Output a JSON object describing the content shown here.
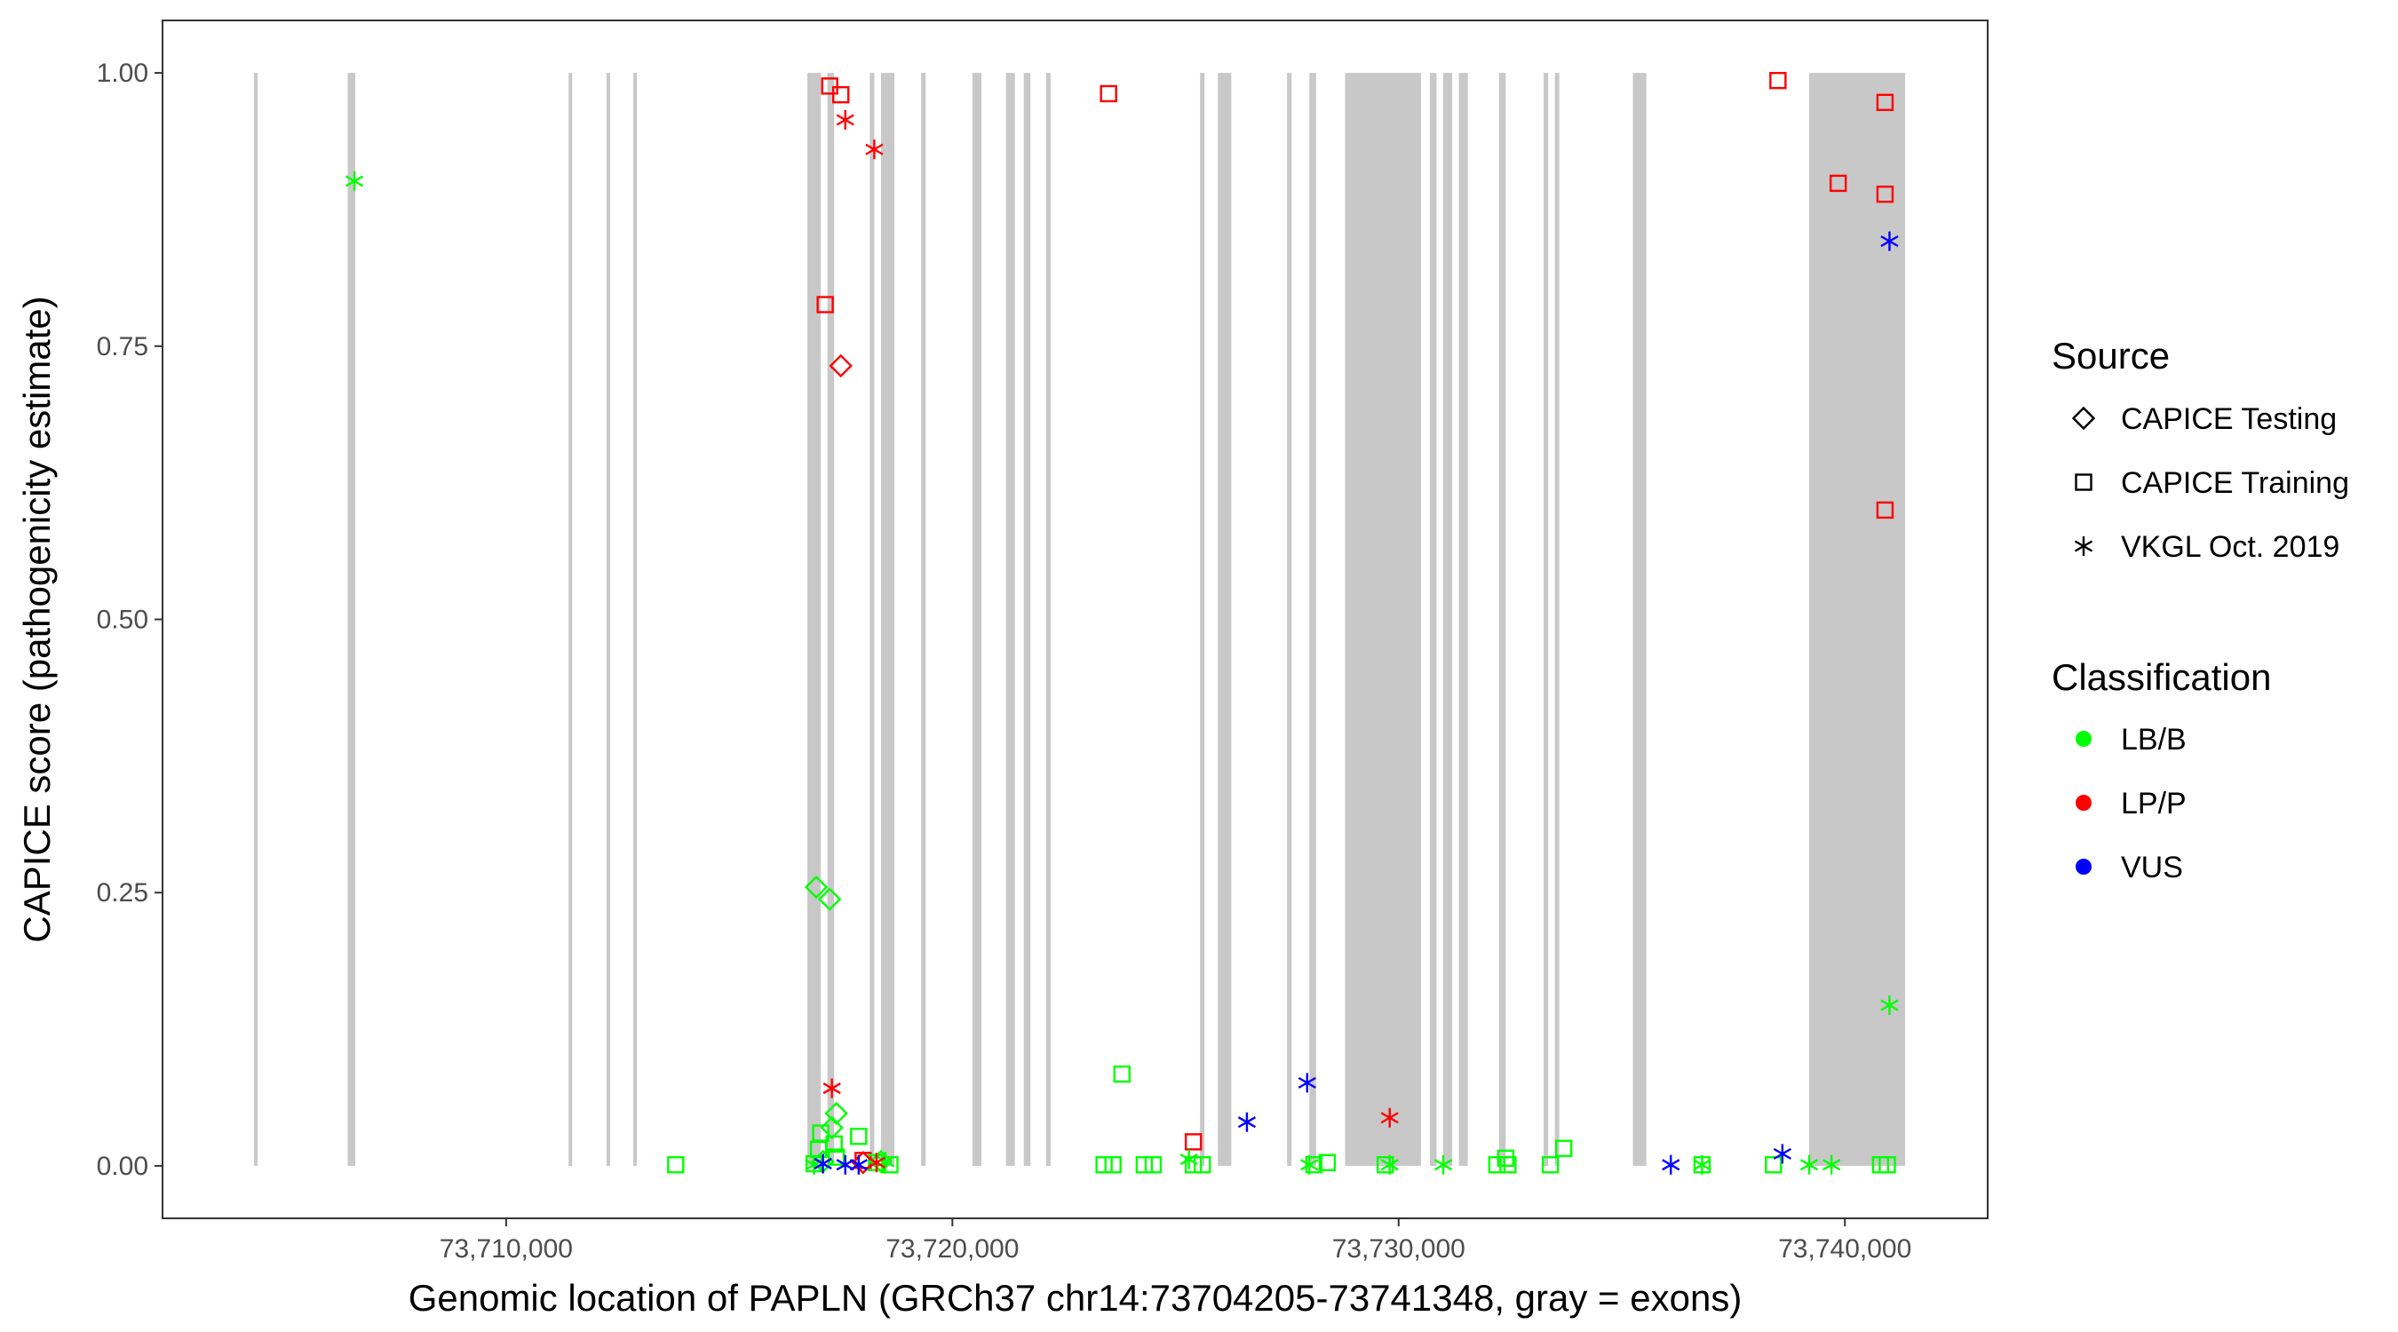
{
  "chart_data": {
    "type": "scatter",
    "xlabel": "Genomic location of PAPLN (GRCh37 chr14:73704205-73741348, gray = exons)",
    "ylabel": "CAPICE score (pathogenicity estimate)",
    "xlim": [
      73702300,
      73743200
    ],
    "ylim": [
      -0.048,
      1.048
    ],
    "x_ticks": [
      73710000,
      73720000,
      73730000,
      73740000
    ],
    "x_tick_labels": [
      "73,710,000",
      "73,720,000",
      "73,730,000",
      "73,740,000"
    ],
    "y_ticks": [
      0,
      0.25,
      0.5,
      0.75,
      1
    ],
    "y_tick_labels": [
      "0.00",
      "0.25",
      "0.50",
      "0.75",
      "1.00"
    ],
    "grid": false,
    "exon_color": "#c8c8c8",
    "exons": [
      [
        73704350,
        73704430
      ],
      [
        73706450,
        73706620
      ],
      [
        73711400,
        73711480
      ],
      [
        73712250,
        73712330
      ],
      [
        73712850,
        73712930
      ],
      [
        73716750,
        73717050
      ],
      [
        73717200,
        73717350
      ],
      [
        73718150,
        73718250
      ],
      [
        73718400,
        73718700
      ],
      [
        73719300,
        73719400
      ],
      [
        73720450,
        73720650
      ],
      [
        73721200,
        73721400
      ],
      [
        73721600,
        73721750
      ],
      [
        73722100,
        73722200
      ],
      [
        73725550,
        73725650
      ],
      [
        73725950,
        73726250
      ],
      [
        73727500,
        73727600
      ],
      [
        73728000,
        73728150
      ],
      [
        73728800,
        73730500
      ],
      [
        73730700,
        73730850
      ],
      [
        73731000,
        73731200
      ],
      [
        73731350,
        73731550
      ],
      [
        73732250,
        73732400
      ],
      [
        73733250,
        73733350
      ],
      [
        73733500,
        73733600
      ],
      [
        73735250,
        73735550
      ],
      [
        73739200,
        73741350
      ]
    ],
    "legends": [
      {
        "title": "Source",
        "entries": [
          {
            "label": "CAPICE Testing",
            "shape": "diamond"
          },
          {
            "label": "CAPICE Training",
            "shape": "square"
          },
          {
            "label": "VKGL Oct. 2019",
            "shape": "asterisk"
          }
        ]
      },
      {
        "title": "Classification",
        "entries": [
          {
            "label": "LB/B",
            "color": "#00ff00"
          },
          {
            "label": "LP/P",
            "color": "#ff0000"
          },
          {
            "label": "VUS",
            "color": "#0000ff"
          }
        ]
      }
    ],
    "legend_position": "right",
    "series": [
      {
        "source": "CAPICE Training",
        "classification": "LP/P",
        "points": [
          [
            73717250,
            0.988
          ],
          [
            73717500,
            0.98
          ],
          [
            73717150,
            0.788
          ],
          [
            73723500,
            0.981
          ],
          [
            73725400,
            0.022
          ],
          [
            73738500,
            0.993
          ],
          [
            73739850,
            0.899
          ],
          [
            73740900,
            0.973
          ],
          [
            73740900,
            0.889
          ],
          [
            73740900,
            0.6
          ],
          [
            73718000,
            0.005
          ]
        ]
      },
      {
        "source": "CAPICE Training",
        "classification": "LB/B",
        "points": [
          [
            73713800,
            0.001
          ],
          [
            73716900,
            0.002
          ],
          [
            73717000,
            0.015
          ],
          [
            73717050,
            0.03
          ],
          [
            73717350,
            0.02
          ],
          [
            73717400,
            0.008
          ],
          [
            73717900,
            0.027
          ],
          [
            73718300,
            0.003
          ],
          [
            73718600,
            0.001
          ],
          [
            73723400,
            0.001
          ],
          [
            73723600,
            0.001
          ],
          [
            73723800,
            0.084
          ],
          [
            73724300,
            0.001
          ],
          [
            73724500,
            0.001
          ],
          [
            73725400,
            0.001
          ],
          [
            73725600,
            0.001
          ],
          [
            73728100,
            0.001
          ],
          [
            73728400,
            0.003
          ],
          [
            73729700,
            0.001
          ],
          [
            73732200,
            0.001
          ],
          [
            73732400,
            0.007
          ],
          [
            73732450,
            0.001
          ],
          [
            73733400,
            0.001
          ],
          [
            73733700,
            0.016
          ],
          [
            73736800,
            0.001
          ],
          [
            73738400,
            0.001
          ],
          [
            73740800,
            0.001
          ],
          [
            73740950,
            0.001
          ]
        ]
      },
      {
        "source": "CAPICE Testing",
        "classification": "LP/P",
        "points": [
          [
            73717500,
            0.732
          ],
          [
            73718000,
            0.003
          ]
        ]
      },
      {
        "source": "CAPICE Testing",
        "classification": "LB/B",
        "points": [
          [
            73716950,
            0.255
          ],
          [
            73717250,
            0.244
          ],
          [
            73717400,
            0.048
          ],
          [
            73717300,
            0.035
          ],
          [
            73717100,
            0.004
          ],
          [
            73718400,
            0.004
          ]
        ]
      },
      {
        "source": "VKGL Oct. 2019",
        "classification": "LB/B",
        "points": [
          [
            73706600,
            0.901
          ],
          [
            73716900,
            0.001
          ],
          [
            73718500,
            0.004
          ],
          [
            73725300,
            0.006
          ],
          [
            73728000,
            0.001
          ],
          [
            73729800,
            0.001
          ],
          [
            73731000,
            0.001
          ],
          [
            73736800,
            0.001
          ],
          [
            73739200,
            0.001
          ],
          [
            73739700,
            0.001
          ],
          [
            73741000,
            0.147
          ]
        ]
      },
      {
        "source": "VKGL Oct. 2019",
        "classification": "LP/P",
        "points": [
          [
            73717600,
            0.957
          ],
          [
            73718250,
            0.93
          ],
          [
            73717300,
            0.071
          ],
          [
            73729800,
            0.044
          ],
          [
            73718300,
            0.003
          ]
        ]
      },
      {
        "source": "VKGL Oct. 2019",
        "classification": "VUS",
        "points": [
          [
            73741000,
            0.846
          ],
          [
            73727950,
            0.076
          ],
          [
            73726600,
            0.04
          ],
          [
            73717100,
            0.002
          ],
          [
            73717600,
            0.001
          ],
          [
            73717900,
            0.001
          ],
          [
            73736100,
            0.001
          ],
          [
            73738600,
            0.011
          ]
        ]
      }
    ]
  }
}
